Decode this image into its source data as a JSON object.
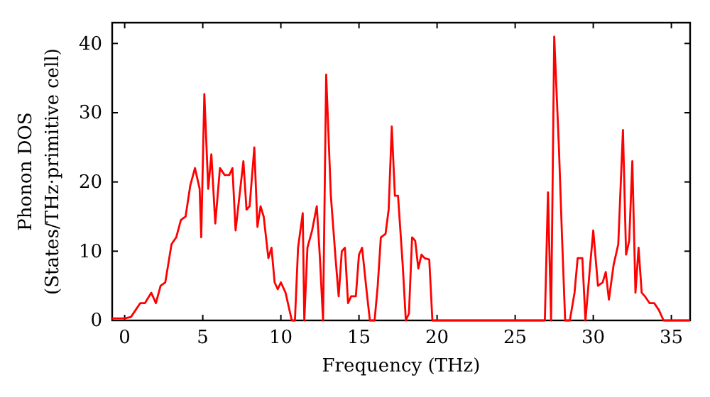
{
  "chart_data": {
    "type": "line",
    "xlabel": "Frequency (THz)",
    "ylabel": "Phonon DOS\n(States/THz·primitive cell)",
    "xlim": [
      -0.8,
      36.2
    ],
    "ylim": [
      0,
      43
    ],
    "xticks": [
      0,
      5,
      10,
      15,
      20,
      25,
      30,
      35
    ],
    "yticks": [
      0,
      10,
      20,
      30,
      40
    ],
    "grid": false,
    "marker": "none",
    "line_style": "solid",
    "series": [
      {
        "color": "#ff0000",
        "x": [
          -0.8,
          0,
          0.4,
          0.7,
          1,
          1.3,
          1.7,
          2,
          2.3,
          2.6,
          3,
          3.3,
          3.6,
          3.9,
          4.2,
          4.5,
          4.8,
          4.9,
          5.1,
          5.35,
          5.55,
          5.8,
          6.1,
          6.4,
          6.7,
          6.9,
          7.1,
          7.4,
          7.6,
          7.8,
          8.0,
          8.3,
          8.5,
          8.7,
          8.9,
          9.2,
          9.4,
          9.6,
          9.8,
          10.0,
          10.3,
          10.5,
          10.7,
          10.9,
          11.1,
          11.4,
          11.5,
          11.7,
          12.0,
          12.3,
          12.5,
          12.7,
          12.9,
          13.2,
          13.5,
          13.7,
          13.9,
          14.1,
          14.3,
          14.5,
          14.8,
          15.0,
          15.2,
          15.5,
          15.7,
          16.0,
          16.2,
          16.4,
          16.7,
          16.9,
          17.1,
          17.3,
          17.5,
          17.8,
          18.0,
          18.2,
          18.4,
          18.6,
          18.8,
          19.0,
          19.2,
          19.5,
          19.7,
          26.9,
          27.1,
          27.3,
          27.5,
          27.8,
          28.0,
          28.2,
          28.5,
          28.8,
          29.0,
          29.3,
          29.5,
          29.8,
          30.0,
          30.3,
          30.6,
          30.8,
          31.0,
          31.3,
          31.6,
          31.9,
          32.1,
          32.3,
          32.5,
          32.7,
          32.9,
          33.1,
          33.3,
          33.6,
          33.9,
          34.2,
          34.5,
          36.2
        ],
        "values": [
          0.3,
          0.3,
          0.5,
          1.5,
          2.5,
          2.5,
          4,
          2.5,
          5,
          5.5,
          11,
          12,
          14.5,
          15,
          19.5,
          22,
          19,
          12,
          32.7,
          19,
          24,
          14,
          22,
          21,
          21,
          22,
          13,
          19,
          23,
          16,
          16.5,
          25,
          13.5,
          16.5,
          15,
          9,
          10.5,
          5.5,
          4.5,
          5.5,
          4,
          2,
          0,
          0,
          10.5,
          15.5,
          0,
          10.5,
          13,
          16.5,
          9,
          0,
          35.5,
          18,
          9,
          3.5,
          10,
          10.5,
          2.5,
          3.5,
          3.5,
          9.5,
          10.5,
          4,
          0,
          0,
          5,
          12,
          12.5,
          16,
          28,
          18,
          18,
          8,
          0,
          1,
          12,
          11.5,
          7.5,
          9.5,
          9,
          8.8,
          0,
          0,
          18.5,
          0,
          41,
          25,
          12,
          0,
          0,
          4,
          9,
          9,
          0,
          8,
          13,
          5,
          5.5,
          7,
          3,
          8,
          11,
          27.5,
          9.5,
          11.5,
          23,
          4,
          10.5,
          4,
          3.5,
          2.5,
          2.5,
          1.5,
          0,
          0
        ]
      }
    ]
  }
}
